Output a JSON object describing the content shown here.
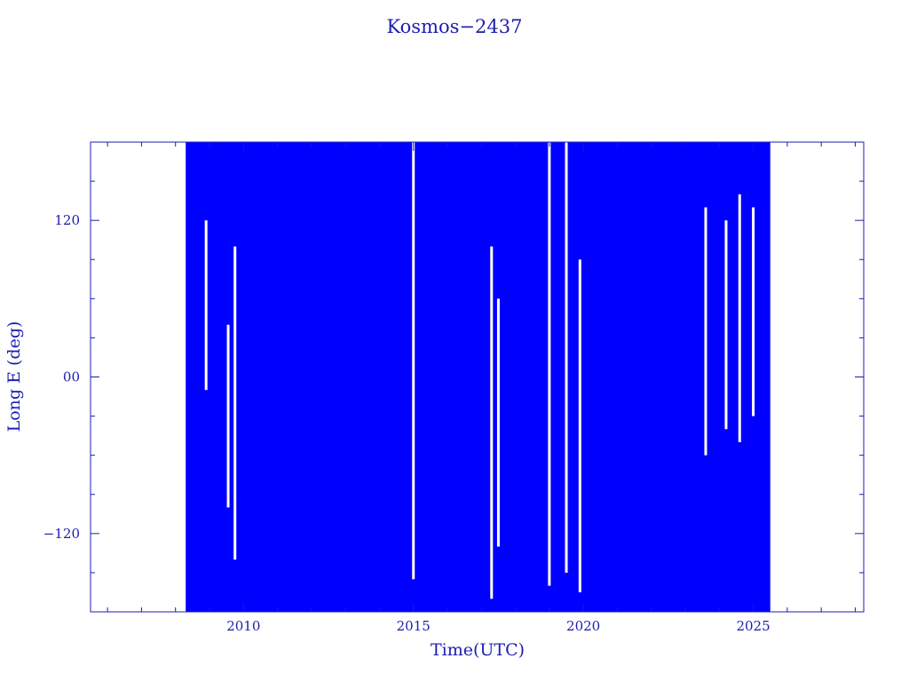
{
  "chart_data": {
    "type": "scatter",
    "title": "Kosmos−2437",
    "xlabel": "Time(UTC)",
    "ylabel": "Long E (deg)",
    "xlim": [
      2005.5,
      2028.25
    ],
    "ylim": [
      -180,
      180
    ],
    "x_ticks": [
      2010,
      2015,
      2020,
      2025
    ],
    "x_tick_labels": [
      "2010",
      "2015",
      "2020",
      "2025"
    ],
    "y_ticks": [
      -120,
      0,
      120
    ],
    "y_tick_labels": [
      "−120",
      "00",
      "120"
    ],
    "data_start": 2008.3,
    "data_end": 2025.5,
    "series_color": "#0000ff",
    "axis_color": "#1c1cb4",
    "gaps": [
      {
        "x": 2008.9,
        "y": [
          -10,
          120
        ]
      },
      {
        "x": 2009.55,
        "y": [
          -100,
          40
        ]
      },
      {
        "x": 2009.75,
        "y": [
          -140,
          100
        ]
      },
      {
        "x": 2015.0,
        "y": [
          -155,
          180
        ]
      },
      {
        "x": 2017.3,
        "y": [
          -170,
          100
        ]
      },
      {
        "x": 2017.5,
        "y": [
          -130,
          60
        ]
      },
      {
        "x": 2019.0,
        "y": [
          -160,
          180
        ]
      },
      {
        "x": 2019.5,
        "y": [
          -150,
          180
        ]
      },
      {
        "x": 2019.9,
        "y": [
          -165,
          90
        ]
      },
      {
        "x": 2023.6,
        "y": [
          -60,
          130
        ]
      },
      {
        "x": 2024.2,
        "y": [
          -40,
          120
        ]
      },
      {
        "x": 2024.6,
        "y": [
          -50,
          140
        ]
      },
      {
        "x": 2025.0,
        "y": [
          -30,
          130
        ]
      }
    ]
  }
}
